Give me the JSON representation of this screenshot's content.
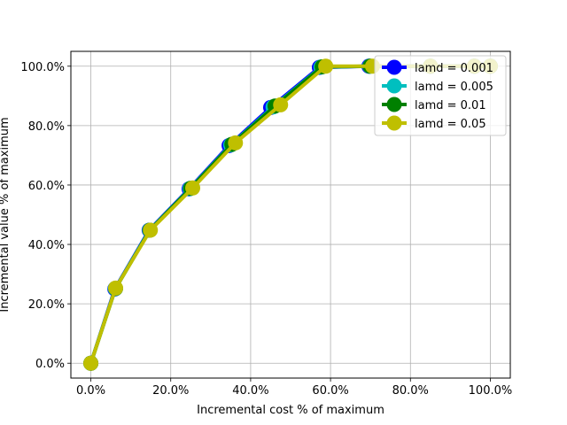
{
  "chart_data": {
    "type": "line",
    "xlabel": "Incremental cost % of maximum",
    "ylabel": "Incremental value % of maximum",
    "xlim": [
      -5.0,
      105.0
    ],
    "ylim": [
      -5.0,
      105.0
    ],
    "xticks": [
      0,
      20,
      40,
      60,
      80,
      100
    ],
    "yticks": [
      0,
      20,
      40,
      60,
      80,
      100
    ],
    "xtick_labels": [
      "0.0%",
      "20.0%",
      "40.0%",
      "60.0%",
      "80.0%",
      "100.0%"
    ],
    "ytick_labels": [
      "0.0%",
      "20.0%",
      "40.0%",
      "60.0%",
      "80.0%",
      "100.0%"
    ],
    "grid": true,
    "legend_position": "top-right",
    "series": [
      {
        "name": "lamd = 0.001",
        "color": "#0000ff",
        "x": [
          0.0,
          6.0,
          14.6,
          24.6,
          34.6,
          45.0,
          57.2,
          69.6,
          85.0,
          96.0,
          100.0
        ],
        "y": [
          0.0,
          25.0,
          44.8,
          58.7,
          73.3,
          86.1,
          99.6,
          100.0,
          100.0,
          100.0,
          100.0
        ]
      },
      {
        "name": "lamd = 0.005",
        "color": "#00bfbf",
        "x": [
          0.0,
          6.1,
          14.7,
          24.8,
          35.0,
          45.6,
          57.6,
          69.8,
          85.0,
          96.0,
          100.0
        ],
        "y": [
          0.0,
          25.1,
          44.8,
          58.8,
          73.5,
          86.3,
          99.7,
          100.0,
          100.0,
          100.0,
          100.0
        ]
      },
      {
        "name": "lamd = 0.01",
        "color": "#008000",
        "x": [
          0.0,
          6.2,
          14.8,
          25.0,
          35.3,
          46.1,
          57.9,
          69.9,
          85.0,
          96.0,
          100.0
        ],
        "y": [
          0.0,
          25.2,
          44.8,
          58.9,
          73.7,
          86.6,
          99.8,
          100.0,
          100.0,
          100.0,
          100.0
        ]
      },
      {
        "name": "lamd = 0.05",
        "color": "#bfbf00",
        "x": [
          0.0,
          6.2,
          14.9,
          25.5,
          36.2,
          47.5,
          58.8,
          70.5,
          85.0,
          96.0,
          100.0
        ],
        "y": [
          0.0,
          25.3,
          44.8,
          59.0,
          74.2,
          87.0,
          100.0,
          100.0,
          100.0,
          100.0,
          100.0
        ]
      }
    ]
  }
}
